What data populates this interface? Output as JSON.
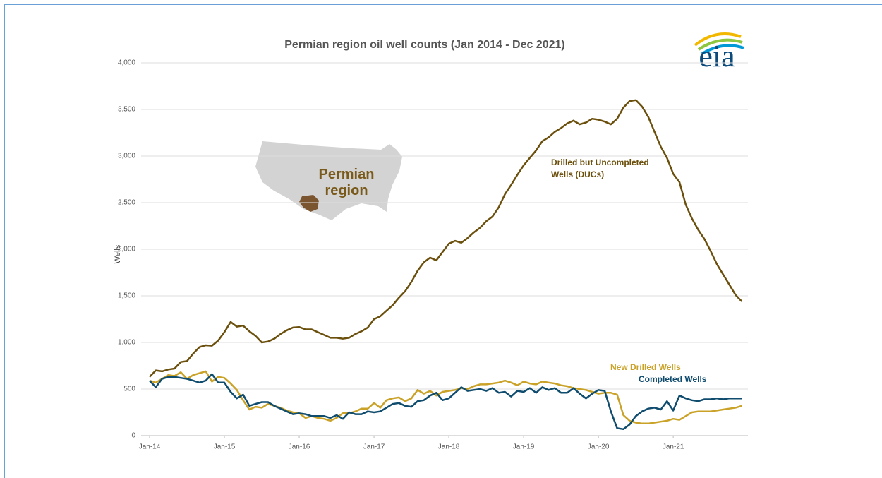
{
  "chart_data": {
    "type": "line",
    "title": "Permian region oil well counts (Jan 2014 - Dec 2021)",
    "ylabel": "Wells",
    "logo": "eia",
    "map_label": "Permian region",
    "categories": [
      "Jan-14",
      null,
      null,
      null,
      null,
      null,
      null,
      null,
      null,
      null,
      null,
      null,
      "Jan-15",
      null,
      null,
      null,
      null,
      null,
      null,
      null,
      null,
      null,
      null,
      null,
      "Jan-16",
      null,
      null,
      null,
      null,
      null,
      null,
      null,
      null,
      null,
      null,
      null,
      "Jan-17",
      null,
      null,
      null,
      null,
      null,
      null,
      null,
      null,
      null,
      null,
      null,
      "Jan-18",
      null,
      null,
      null,
      null,
      null,
      null,
      null,
      null,
      null,
      null,
      null,
      "Jan-19",
      null,
      null,
      null,
      null,
      null,
      null,
      null,
      null,
      null,
      null,
      null,
      "Jan-20",
      null,
      null,
      null,
      null,
      null,
      null,
      null,
      null,
      null,
      null,
      null,
      "Jan-21",
      null,
      null,
      null,
      null,
      null,
      null,
      null,
      null,
      null,
      null,
      null
    ],
    "series": [
      {
        "name": "Drilled but Uncompleted Wells (DUCs)",
        "color": "#6b4f0c",
        "values": [
          630,
          700,
          690,
          710,
          720,
          790,
          800,
          880,
          950,
          970,
          965,
          1020,
          1110,
          1220,
          1170,
          1180,
          1120,
          1070,
          1000,
          1010,
          1040,
          1090,
          1130,
          1160,
          1165,
          1140,
          1140,
          1110,
          1080,
          1050,
          1050,
          1040,
          1050,
          1090,
          1120,
          1160,
          1250,
          1280,
          1340,
          1400,
          1480,
          1550,
          1650,
          1770,
          1860,
          1910,
          1880,
          1970,
          2060,
          2090,
          2070,
          2120,
          2180,
          2230,
          2300,
          2350,
          2450,
          2590,
          2690,
          2800,
          2900,
          2980,
          3060,
          3160,
          3200,
          3260,
          3300,
          3350,
          3380,
          3340,
          3360,
          3400,
          3390,
          3370,
          3340,
          3400,
          3520,
          3590,
          3600,
          3530,
          3420,
          3260,
          3100,
          2980,
          2810,
          2720,
          2480,
          2330,
          2210,
          2110,
          1980,
          1840,
          1730,
          1620,
          1510,
          1440
        ]
      },
      {
        "name": "New Drilled Wells",
        "color": "#c9a227",
        "values": [
          590,
          570,
          610,
          650,
          640,
          680,
          610,
          650,
          670,
          690,
          580,
          630,
          620,
          560,
          490,
          380,
          280,
          310,
          300,
          340,
          320,
          300,
          270,
          250,
          240,
          190,
          210,
          190,
          180,
          160,
          190,
          240,
          240,
          260,
          290,
          290,
          350,
          300,
          380,
          400,
          410,
          370,
          400,
          490,
          450,
          480,
          430,
          470,
          480,
          490,
          510,
          500,
          530,
          550,
          550,
          560,
          570,
          590,
          570,
          540,
          580,
          560,
          550,
          580,
          570,
          560,
          540,
          530,
          510,
          500,
          490,
          470,
          450,
          460,
          460,
          440,
          220,
          160,
          140,
          130,
          130,
          140,
          150,
          160,
          180,
          170,
          210,
          250,
          260,
          260,
          260,
          270,
          280,
          290,
          300,
          320
        ]
      },
      {
        "name": "Completed Wells",
        "color": "#0f4c6e",
        "values": [
          590,
          520,
          610,
          630,
          630,
          620,
          610,
          590,
          570,
          590,
          660,
          570,
          570,
          470,
          400,
          440,
          320,
          340,
          360,
          360,
          320,
          290,
          260,
          230,
          240,
          230,
          210,
          210,
          210,
          190,
          220,
          180,
          250,
          230,
          230,
          260,
          250,
          260,
          300,
          340,
          350,
          320,
          310,
          370,
          380,
          430,
          460,
          380,
          400,
          460,
          520,
          480,
          490,
          500,
          480,
          510,
          460,
          470,
          420,
          480,
          470,
          510,
          460,
          520,
          490,
          510,
          460,
          460,
          510,
          450,
          400,
          450,
          490,
          480,
          260,
          80,
          70,
          120,
          210,
          260,
          290,
          300,
          280,
          370,
          270,
          430,
          400,
          380,
          370,
          390,
          390,
          400,
          390,
          400,
          400,
          400
        ]
      }
    ],
    "ylim": [
      0,
      4000
    ],
    "yticks": [
      0,
      500,
      {
        "value": 1000,
        "label": "1,000"
      },
      {
        "value": 1500,
        "label": "1,500"
      },
      {
        "value": 2000,
        "label": "2,000"
      },
      {
        "value": 2500,
        "label": "2,500"
      },
      {
        "value": 3000,
        "label": "3,000"
      },
      {
        "value": 3500,
        "label": "3,500"
      },
      {
        "value": 4000,
        "label": "4,000"
      }
    ],
    "grid": true
  }
}
